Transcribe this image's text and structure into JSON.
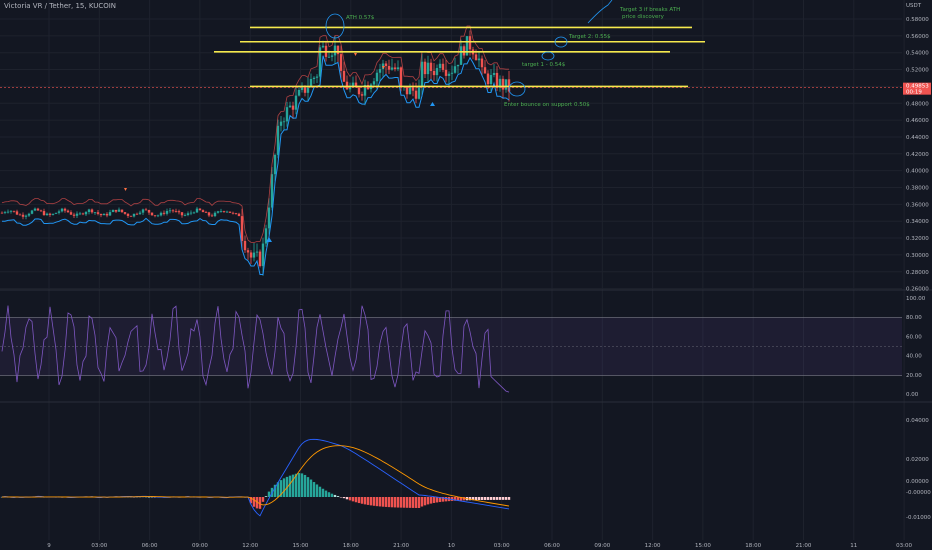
{
  "header": {
    "title": "Victoria VR / Tether, 15, KUCOIN",
    "currency": "USDT"
  },
  "colors": {
    "bg": "#131722",
    "grid": "#1e222d",
    "up": "#26a69a",
    "down": "#ef5350",
    "line_blue": "#2196f3",
    "line_red": "#ef5350",
    "yellow": "#f5e94d",
    "annotation": "#4caf50",
    "rsi": "#7e57c2",
    "macd": "#2962ff",
    "signal": "#ff9800",
    "hist_up_strong": "#26a69a",
    "hist_up_weak": "#b2dfdb",
    "hist_down_strong": "#ef5350",
    "hist_down_weak": "#ffcdd2"
  },
  "price_axis": {
    "labels": [
      "0.58000",
      "0.56000",
      "0.54000",
      "0.52000",
      "0.50000",
      "0.48000",
      "0.46000",
      "0.44000",
      "0.42000",
      "0.40000",
      "0.38000",
      "0.36000",
      "0.34000",
      "0.32000",
      "0.30000",
      "0.28000",
      "0.26000"
    ],
    "current_price": "0.49853",
    "current_sub": "00:19"
  },
  "rsi_axis": {
    "labels": [
      "100.00",
      "80.00",
      "60.00",
      "40.00",
      "20.00",
      "0.00"
    ]
  },
  "macd_axis": {
    "labels": [
      "0.04000",
      "0.02000",
      "0.00000",
      "-0.00000",
      "-0.01000"
    ]
  },
  "time_axis": {
    "labels": [
      "9",
      "03:00",
      "06:00",
      "09:00",
      "12:00",
      "15:00",
      "18:00",
      "21:00",
      "10",
      "03:00",
      "06:00",
      "09:00",
      "12:00",
      "15:00",
      "18:00",
      "21:00",
      "11",
      "03:00"
    ]
  },
  "annotations": {
    "ath": "ATH 0.57$",
    "target3": "Target 3 if breaks ATH",
    "target3_b": "price discovery",
    "target2": "Target 2: 0.55$",
    "target1": "target 1 - 0.54$",
    "enter": "Enter bounce on support 0.50$"
  },
  "chart_data": [
    {
      "type": "candlestick",
      "title": "Victoria VR / Tether, 15, KUCOIN",
      "ylim": [
        0.26,
        0.59
      ],
      "horizontal_levels": [
        0.57,
        0.553,
        0.541,
        0.5
      ],
      "candles_summary": "flat ~0.35 until 12:00 on day 9, dip to 0.29, surge to 0.56, range 0.50-0.56 through day 10"
    },
    {
      "type": "line",
      "name": "RSI",
      "ylim": [
        0,
        100
      ],
      "bands": [
        80,
        20
      ]
    },
    {
      "type": "bar",
      "name": "MACD histogram",
      "ylim": [
        -0.015,
        0.045
      ]
    }
  ]
}
